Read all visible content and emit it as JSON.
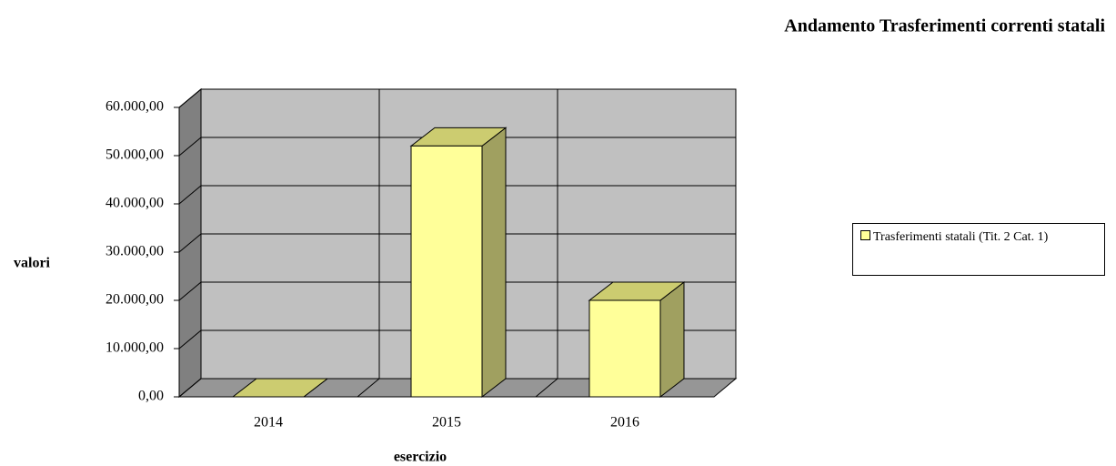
{
  "chart_data": {
    "type": "bar3d",
    "title": "Andamento Trasferimenti correnti statali",
    "xlabel": "esercizio",
    "ylabel": "valori",
    "categories": [
      "2014",
      "2015",
      "2016"
    ],
    "series": [
      {
        "name": "Trasferimenti  statali (Tit. 2 Cat. 1)",
        "color": "#ffff99",
        "values": [
          0,
          52000,
          20000
        ]
      }
    ],
    "ylim": [
      0,
      60000
    ],
    "yticks": [
      {
        "value": 0,
        "label": "0,00"
      },
      {
        "value": 10000,
        "label": "10.000,00"
      },
      {
        "value": 20000,
        "label": "20.000,00"
      },
      {
        "value": 30000,
        "label": "30.000,00"
      },
      {
        "value": 40000,
        "label": "40.000,00"
      },
      {
        "value": 50000,
        "label": "50.000,00"
      },
      {
        "value": 60000,
        "label": "60.000,00"
      }
    ],
    "grid": true
  }
}
